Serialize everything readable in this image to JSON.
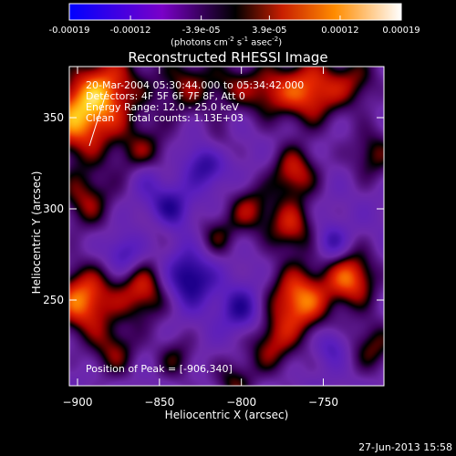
{
  "colorbar": {
    "ticks": [
      "-0.00019",
      "-0.00012",
      "-3.9e-05",
      "3.9e-05",
      "0.00012",
      "0.00019"
    ],
    "tick_values": [
      -0.00019,
      -0.00012,
      -3.9e-05,
      3.9e-05,
      0.00012,
      0.00019
    ],
    "range": [
      -0.00019,
      0.00019
    ],
    "units_main": "(photons cm",
    "units_exp1": "-2",
    "units_mid": " s",
    "units_exp2": "-1",
    "units_end": " asec",
    "units_exp3": "-2",
    "units_close": ")",
    "colors": [
      "#0000ff",
      "#7a00c8",
      "#000000",
      "#c81e00",
      "#ff8c00",
      "#ffffff"
    ]
  },
  "chart_data": {
    "type": "heatmap",
    "title": "Reconstructed RHESSI Image",
    "xlabel": "Heliocentric X (arcsec)",
    "ylabel": "Heliocentric Y (arcsec)",
    "xlim": [
      -905,
      -713
    ],
    "ylim": [
      203,
      378
    ],
    "xticks": [
      -900,
      -850,
      -800,
      -750
    ],
    "xtick_labels": [
      "−900",
      "−850",
      "−800",
      "−750"
    ],
    "yticks": [
      250,
      300,
      350
    ],
    "ytick_labels": [
      "250",
      "300",
      "350"
    ],
    "peak": [
      -906,
      340
    ],
    "blobs": [
      {
        "x": -900,
        "y": 350,
        "r": 22,
        "v": 1.0
      },
      {
        "x": -880,
        "y": 368,
        "r": 20,
        "v": 0.7
      },
      {
        "x": -860,
        "y": 330,
        "r": 16,
        "v": 0.55
      },
      {
        "x": -895,
        "y": 305,
        "r": 16,
        "v": 0.6
      },
      {
        "x": -835,
        "y": 368,
        "r": 18,
        "v": 0.55
      },
      {
        "x": -808,
        "y": 368,
        "r": 14,
        "v": 0.4
      },
      {
        "x": -785,
        "y": 365,
        "r": 15,
        "v": 0.6
      },
      {
        "x": -758,
        "y": 365,
        "r": 18,
        "v": 0.9
      },
      {
        "x": -730,
        "y": 370,
        "r": 14,
        "v": 0.5
      },
      {
        "x": -720,
        "y": 330,
        "r": 14,
        "v": 0.55
      },
      {
        "x": -768,
        "y": 320,
        "r": 14,
        "v": 0.75
      },
      {
        "x": -795,
        "y": 300,
        "r": 13,
        "v": 0.6
      },
      {
        "x": -770,
        "y": 290,
        "r": 14,
        "v": 0.7
      },
      {
        "x": -765,
        "y": 250,
        "r": 18,
        "v": 1.0
      },
      {
        "x": -782,
        "y": 225,
        "r": 15,
        "v": 0.6
      },
      {
        "x": -733,
        "y": 262,
        "r": 15,
        "v": 0.9
      },
      {
        "x": -720,
        "y": 225,
        "r": 14,
        "v": 0.55
      },
      {
        "x": -897,
        "y": 250,
        "r": 18,
        "v": 1.0
      },
      {
        "x": -860,
        "y": 255,
        "r": 16,
        "v": 0.75
      },
      {
        "x": -878,
        "y": 222,
        "r": 14,
        "v": 0.55
      },
      {
        "x": -840,
        "y": 218,
        "r": 12,
        "v": 0.45
      },
      {
        "x": -805,
        "y": 205,
        "r": 12,
        "v": 0.5
      },
      {
        "x": -815,
        "y": 285,
        "r": 12,
        "v": 0.45
      },
      {
        "x": -815,
        "y": 335,
        "r": 10,
        "v": 0.35
      },
      {
        "x": -850,
        "y": 292,
        "r": 10,
        "v": 0.35
      },
      {
        "x": -845,
        "y": 300,
        "r": 12,
        "v": -0.7
      },
      {
        "x": -822,
        "y": 325,
        "r": 12,
        "v": -0.6
      },
      {
        "x": -832,
        "y": 262,
        "r": 14,
        "v": -0.8
      },
      {
        "x": -872,
        "y": 275,
        "r": 10,
        "v": -0.5
      },
      {
        "x": -800,
        "y": 245,
        "r": 12,
        "v": -0.6
      },
      {
        "x": -745,
        "y": 282,
        "r": 9,
        "v": -0.5
      },
      {
        "x": -745,
        "y": 225,
        "r": 9,
        "v": -0.4
      },
      {
        "x": -858,
        "y": 318,
        "r": 10,
        "v": -0.4
      }
    ]
  },
  "info": {
    "line1": "20-Mar-2004 05:30:44.000 to 05:34:42.000",
    "line2": "Detectors: 4F 5F 6F 7F 8F, Att 0",
    "line3": "Energy Range: 12.0 - 25.0 keV",
    "line4": "Clean    Total counts: 1.13E+03",
    "peak_text": "Position of Peak = [-906,340]"
  },
  "footer": {
    "date": "27-Jun-2013 15:58"
  }
}
